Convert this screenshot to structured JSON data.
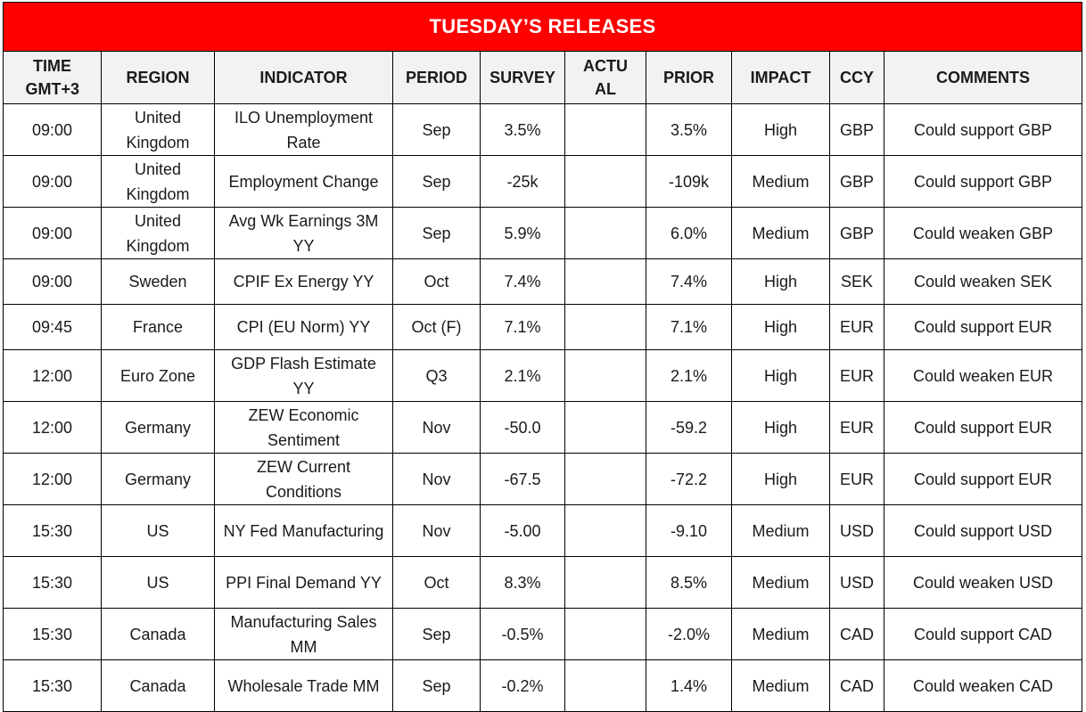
{
  "title": "TUESDAY’S RELEASES",
  "colors": {
    "title_bg": "#ff0000",
    "title_text": "#ffffff",
    "header_bg": "#f2f2f2",
    "border": "#000000"
  },
  "columns": [
    "TIME GMT+3",
    "REGION",
    "INDICATOR",
    "PERIOD",
    "SURVEY",
    "ACTU AL",
    "PRIOR",
    "IMPACT",
    "CCY",
    "COMMENTS"
  ],
  "rows": [
    {
      "time": "09:00",
      "region": "United Kingdom",
      "indicator": "ILO Unemployment Rate",
      "period": "Sep",
      "survey": "3.5%",
      "actual": "",
      "prior": "3.5%",
      "impact": "High",
      "ccy": "GBP",
      "comments": "Could support GBP"
    },
    {
      "time": "09:00",
      "region": "United Kingdom",
      "indicator": "Employment Change",
      "period": "Sep",
      "survey": "-25k",
      "actual": "",
      "prior": "-109k",
      "impact": "Medium",
      "ccy": "GBP",
      "comments": "Could support GBP"
    },
    {
      "time": "09:00",
      "region": "United Kingdom",
      "indicator": "Avg Wk Earnings 3M YY",
      "period": "Sep",
      "survey": "5.9%",
      "actual": "",
      "prior": "6.0%",
      "impact": "Medium",
      "ccy": "GBP",
      "comments": "Could weaken GBP"
    },
    {
      "time": "09:00",
      "region": "Sweden",
      "indicator": "CPIF Ex Energy YY",
      "period": "Oct",
      "survey": "7.4%",
      "actual": "",
      "prior": "7.4%",
      "impact": "High",
      "ccy": "SEK",
      "comments": "Could weaken SEK"
    },
    {
      "time": "09:45",
      "region": "France",
      "indicator": "CPI (EU Norm) YY",
      "period": "Oct (F)",
      "survey": "7.1%",
      "actual": "",
      "prior": "7.1%",
      "impact": "High",
      "ccy": "EUR",
      "comments": "Could support EUR"
    },
    {
      "time": "12:00",
      "region": "Euro Zone",
      "indicator": "GDP Flash Estimate YY",
      "period": "Q3",
      "survey": "2.1%",
      "actual": "",
      "prior": "2.1%",
      "impact": "High",
      "ccy": "EUR",
      "comments": "Could weaken EUR"
    },
    {
      "time": "12:00",
      "region": "Germany",
      "indicator": "ZEW Economic Sentiment",
      "period": "Nov",
      "survey": "-50.0",
      "actual": "",
      "prior": "-59.2",
      "impact": "High",
      "ccy": "EUR",
      "comments": "Could support EUR"
    },
    {
      "time": "12:00",
      "region": "Germany",
      "indicator": "ZEW Current Conditions",
      "period": "Nov",
      "survey": "-67.5",
      "actual": "",
      "prior": "-72.2",
      "impact": "High",
      "ccy": "EUR",
      "comments": "Could support EUR"
    },
    {
      "time": "15:30",
      "region": "US",
      "indicator": "NY Fed Manufacturing",
      "period": "Nov",
      "survey": "-5.00",
      "actual": "",
      "prior": "-9.10",
      "impact": "Medium",
      "ccy": "USD",
      "comments": "Could support USD"
    },
    {
      "time": "15:30",
      "region": "US",
      "indicator": "PPI Final Demand YY",
      "period": "Oct",
      "survey": "8.3%",
      "actual": "",
      "prior": "8.5%",
      "impact": "Medium",
      "ccy": "USD",
      "comments": "Could weaken USD"
    },
    {
      "time": "15:30",
      "region": "Canada",
      "indicator": "Manufacturing Sales MM",
      "period": "Sep",
      "survey": "-0.5%",
      "actual": "",
      "prior": "-2.0%",
      "impact": "Medium",
      "ccy": "CAD",
      "comments": "Could support CAD"
    },
    {
      "time": "15:30",
      "region": "Canada",
      "indicator": "Wholesale Trade MM",
      "period": "Sep",
      "survey": "-0.2%",
      "actual": "",
      "prior": "1.4%",
      "impact": "Medium",
      "ccy": "CAD",
      "comments": "Could weaken CAD"
    }
  ]
}
